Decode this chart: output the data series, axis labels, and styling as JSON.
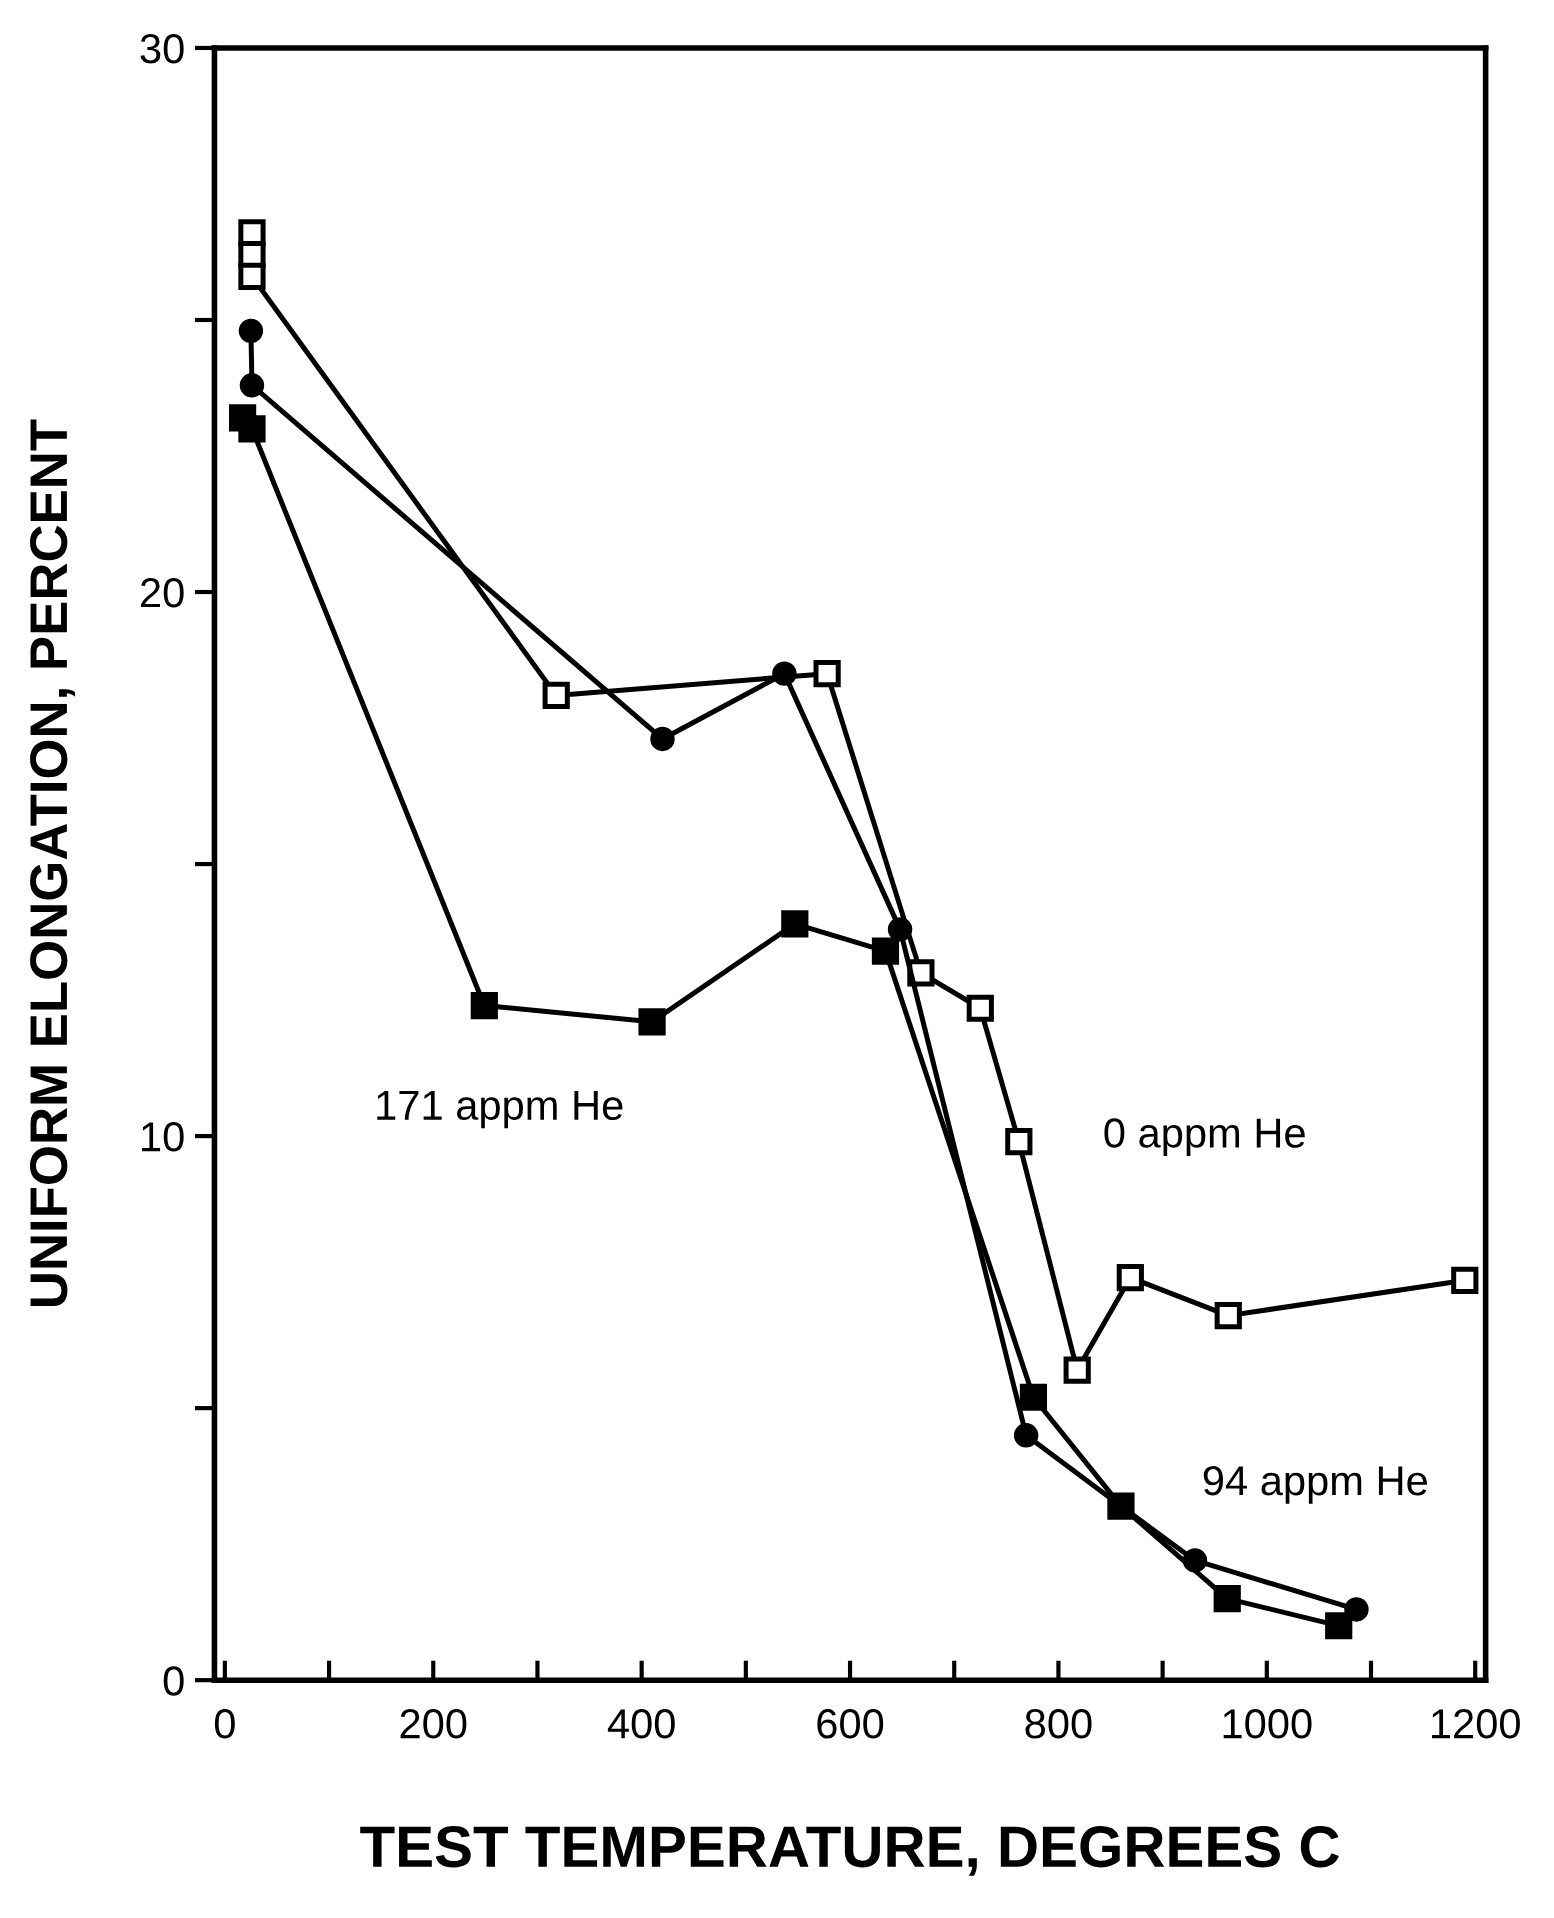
{
  "chart_data": {
    "type": "line",
    "xlabel": "TEST TEMPERATURE, DEGREES C",
    "ylabel": "UNIFORM ELONGATION, PERCENT",
    "xlim": [
      -10,
      1210
    ],
    "ylim": [
      0,
      30
    ],
    "xticks": [
      0,
      {
        "value": 100,
        "label": null
      },
      200,
      {
        "value": 300,
        "label": null
      },
      400,
      {
        "value": 500,
        "label": null
      },
      600,
      {
        "value": 700,
        "label": null
      },
      800,
      {
        "value": 900,
        "label": null
      },
      1000,
      {
        "value": 1100,
        "label": null
      },
      1200
    ],
    "yticks": [
      0,
      {
        "value": 5,
        "label": null
      },
      10,
      {
        "value": 15,
        "label": null
      },
      20,
      {
        "value": 25,
        "label": null
      },
      30
    ],
    "grid": false,
    "legend": false,
    "series": [
      {
        "name": "0 appm He",
        "color": "#000000",
        "marker": "square",
        "x": [
          26,
          26,
          26,
          318,
          578,
          668,
          725,
          762,
          818,
          869,
          963,
          1190
        ],
        "values": [
          26.6,
          26.2,
          25.8,
          18.1,
          18.5,
          13.0,
          12.35,
          9.9,
          5.7,
          7.4,
          6.7,
          7.35
        ]
      },
      {
        "name": "94 appm He",
        "color": "#000000",
        "marker": "circle",
        "x": [
          25,
          26,
          420,
          537,
          648,
          769,
          860,
          931,
          1086
        ],
        "values": [
          24.8,
          23.8,
          17.3,
          18.5,
          13.8,
          4.5,
          3.2,
          2.2,
          1.3
        ]
      },
      {
        "name": "171 appm He",
        "color": "#000000",
        "marker": "square",
        "x": [
          17,
          26,
          249,
          410,
          547,
          634,
          776,
          860,
          962,
          1069
        ],
        "values": [
          23.2,
          23.0,
          12.4,
          12.1,
          13.9,
          13.4,
          5.2,
          3.2,
          1.5,
          1.0
        ]
      }
    ]
  }
}
